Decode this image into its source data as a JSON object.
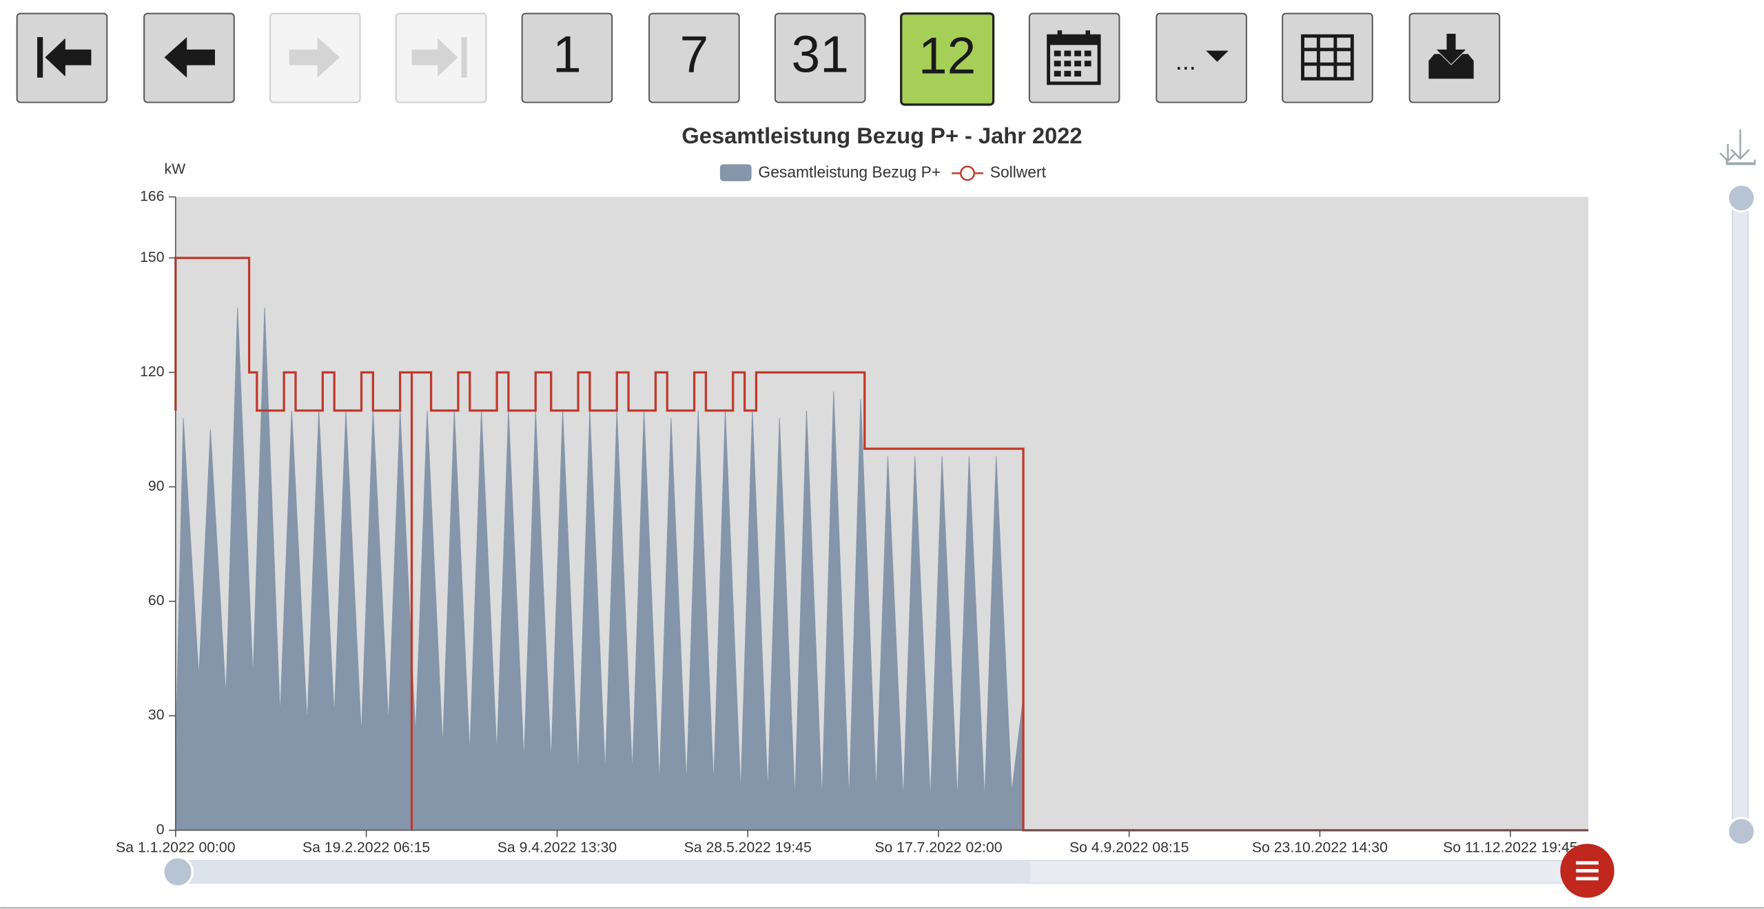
{
  "toolbar": {
    "buttons": [
      "1",
      "7",
      "31",
      "12",
      "..."
    ]
  },
  "chart_data": {
    "type": "area-line",
    "title": "Gesamtleistung Bezug P+ - Jahr 2022",
    "y_label": "kW",
    "ylim": [
      0,
      166
    ],
    "yticks": [
      0,
      30,
      60,
      90,
      120,
      150,
      166
    ],
    "xlim": [
      "2022-01-01T00:00",
      "2022-12-31T23:45"
    ],
    "xticks": [
      {
        "value": "2022-01-01T00:00",
        "label": "Sa 1.1.2022 00:00"
      },
      {
        "value": "2022-02-19T06:15",
        "label": "Sa 19.2.2022 06:15"
      },
      {
        "value": "2022-04-09T13:30",
        "label": "Sa 9.4.2022 13:30"
      },
      {
        "value": "2022-05-28T19:45",
        "label": "Sa 28.5.2022 19:45"
      },
      {
        "value": "2022-07-17T02:00",
        "label": "So 17.7.2022 02:00"
      },
      {
        "value": "2022-09-04T08:15",
        "label": "So 4.9.2022 08:15"
      },
      {
        "value": "2022-10-23T14:30",
        "label": "So 23.10.2022 14:30"
      },
      {
        "value": "2022-12-11T19:45",
        "label": "So 11.12.2022 19:45"
      }
    ],
    "series": [
      {
        "name": "Gesamtleistung Bezug P+",
        "color": "#8595aa",
        "kind": "area",
        "x": [
          "2022-01-01T00:00",
          "2022-01-03T00:00",
          "2022-01-07T00:00",
          "2022-01-10T00:00",
          "2022-01-14T00:00",
          "2022-01-17T00:00",
          "2022-01-21T00:00",
          "2022-01-24T00:00",
          "2022-01-28T00:00",
          "2022-01-31T00:00",
          "2022-02-04T00:00",
          "2022-02-07T00:00",
          "2022-02-11T00:00",
          "2022-02-14T00:00",
          "2022-02-18T00:00",
          "2022-02-21T00:00",
          "2022-02-25T00:00",
          "2022-02-28T00:00",
          "2022-03-04T00:00",
          "2022-03-07T00:00",
          "2022-03-11T00:00",
          "2022-03-14T00:00",
          "2022-03-18T00:00",
          "2022-03-21T00:00",
          "2022-03-25T00:00",
          "2022-03-28T00:00",
          "2022-04-01T00:00",
          "2022-04-04T00:00",
          "2022-04-08T00:00",
          "2022-04-11T00:00",
          "2022-04-15T00:00",
          "2022-04-18T00:00",
          "2022-04-22T00:00",
          "2022-04-25T00:00",
          "2022-04-29T00:00",
          "2022-05-02T00:00",
          "2022-05-06T00:00",
          "2022-05-09T00:00",
          "2022-05-13T00:00",
          "2022-05-16T00:00",
          "2022-05-20T00:00",
          "2022-05-23T00:00",
          "2022-05-27T00:00",
          "2022-05-30T00:00",
          "2022-06-03T00:00",
          "2022-06-06T00:00",
          "2022-06-10T00:00",
          "2022-06-13T00:00",
          "2022-06-17T00:00",
          "2022-06-20T00:00",
          "2022-06-24T00:00",
          "2022-06-27T00:00",
          "2022-07-01T00:00",
          "2022-07-04T00:00",
          "2022-07-08T00:00",
          "2022-07-11T00:00",
          "2022-07-15T00:00",
          "2022-07-18T00:00",
          "2022-07-22T00:00",
          "2022-07-25T00:00",
          "2022-07-29T00:00",
          "2022-08-01T00:00",
          "2022-08-05T00:00",
          "2022-08-08T00:00",
          "2022-08-08T00:00"
        ],
        "values": [
          20,
          108,
          40,
          105,
          35,
          137,
          40,
          137,
          30,
          110,
          28,
          110,
          30,
          110,
          25,
          110,
          28,
          110,
          25,
          110,
          22,
          110,
          20,
          110,
          20,
          110,
          18,
          110,
          18,
          110,
          15,
          110,
          15,
          110,
          15,
          110,
          12,
          108,
          12,
          110,
          12,
          110,
          10,
          110,
          10,
          108,
          8,
          110,
          8,
          115,
          8,
          113,
          10,
          98,
          8,
          98,
          8,
          98,
          8,
          98,
          8,
          98,
          10,
          35,
          0
        ]
      },
      {
        "name": "Sollwert",
        "color": "#c0392b",
        "kind": "line",
        "x": [
          "2022-01-01T00:00",
          "2022-01-01T00:00",
          "2022-01-20T00:00",
          "2022-01-20T00:00",
          "2022-01-22T00:00",
          "2022-01-22T00:00",
          "2022-01-29T00:00",
          "2022-01-29T00:00",
          "2022-02-01T00:00",
          "2022-02-01T00:00",
          "2022-02-08T00:00",
          "2022-02-08T00:00",
          "2022-02-11T00:00",
          "2022-02-11T00:00",
          "2022-02-18T00:00",
          "2022-02-18T00:00",
          "2022-02-21T00:00",
          "2022-02-21T00:00",
          "2022-02-28T00:00",
          "2022-02-28T00:00",
          "2022-03-03T00:00",
          "2022-03-03T00:00",
          "2022-03-03T00:00",
          "2022-03-08T00:00",
          "2022-03-08T00:00",
          "2022-03-15T00:00",
          "2022-03-15T00:00",
          "2022-03-18T00:00",
          "2022-03-18T00:00",
          "2022-03-25T00:00",
          "2022-03-25T00:00",
          "2022-03-28T00:00",
          "2022-03-28T00:00",
          "2022-04-04T00:00",
          "2022-04-04T00:00",
          "2022-04-08T00:00",
          "2022-04-08T00:00",
          "2022-04-15T00:00",
          "2022-04-15T00:00",
          "2022-04-18T00:00",
          "2022-04-18T00:00",
          "2022-04-25T00:00",
          "2022-04-25T00:00",
          "2022-04-28T00:00",
          "2022-04-28T00:00",
          "2022-05-05T00:00",
          "2022-05-05T00:00",
          "2022-05-08T00:00",
          "2022-05-08T00:00",
          "2022-05-15T00:00",
          "2022-05-15T00:00",
          "2022-05-18T00:00",
          "2022-05-18T00:00",
          "2022-05-25T00:00",
          "2022-05-25T00:00",
          "2022-05-28T00:00",
          "2022-05-28T00:00",
          "2022-05-31T00:00",
          "2022-05-31T00:00",
          "2022-06-28T00:00",
          "2022-06-28T00:00",
          "2022-08-08T00:00",
          "2022-08-08T00:00",
          "2022-12-31T23:45"
        ],
        "values": [
          110,
          150,
          150,
          120,
          120,
          110,
          110,
          120,
          120,
          110,
          110,
          120,
          120,
          110,
          110,
          120,
          120,
          110,
          110,
          120,
          120,
          0,
          120,
          120,
          110,
          110,
          120,
          120,
          110,
          110,
          120,
          120,
          110,
          110,
          120,
          120,
          110,
          110,
          120,
          120,
          110,
          110,
          120,
          120,
          110,
          110,
          120,
          120,
          110,
          110,
          120,
          120,
          110,
          110,
          120,
          120,
          110,
          110,
          120,
          120,
          100,
          100,
          0,
          0
        ]
      }
    ]
  }
}
